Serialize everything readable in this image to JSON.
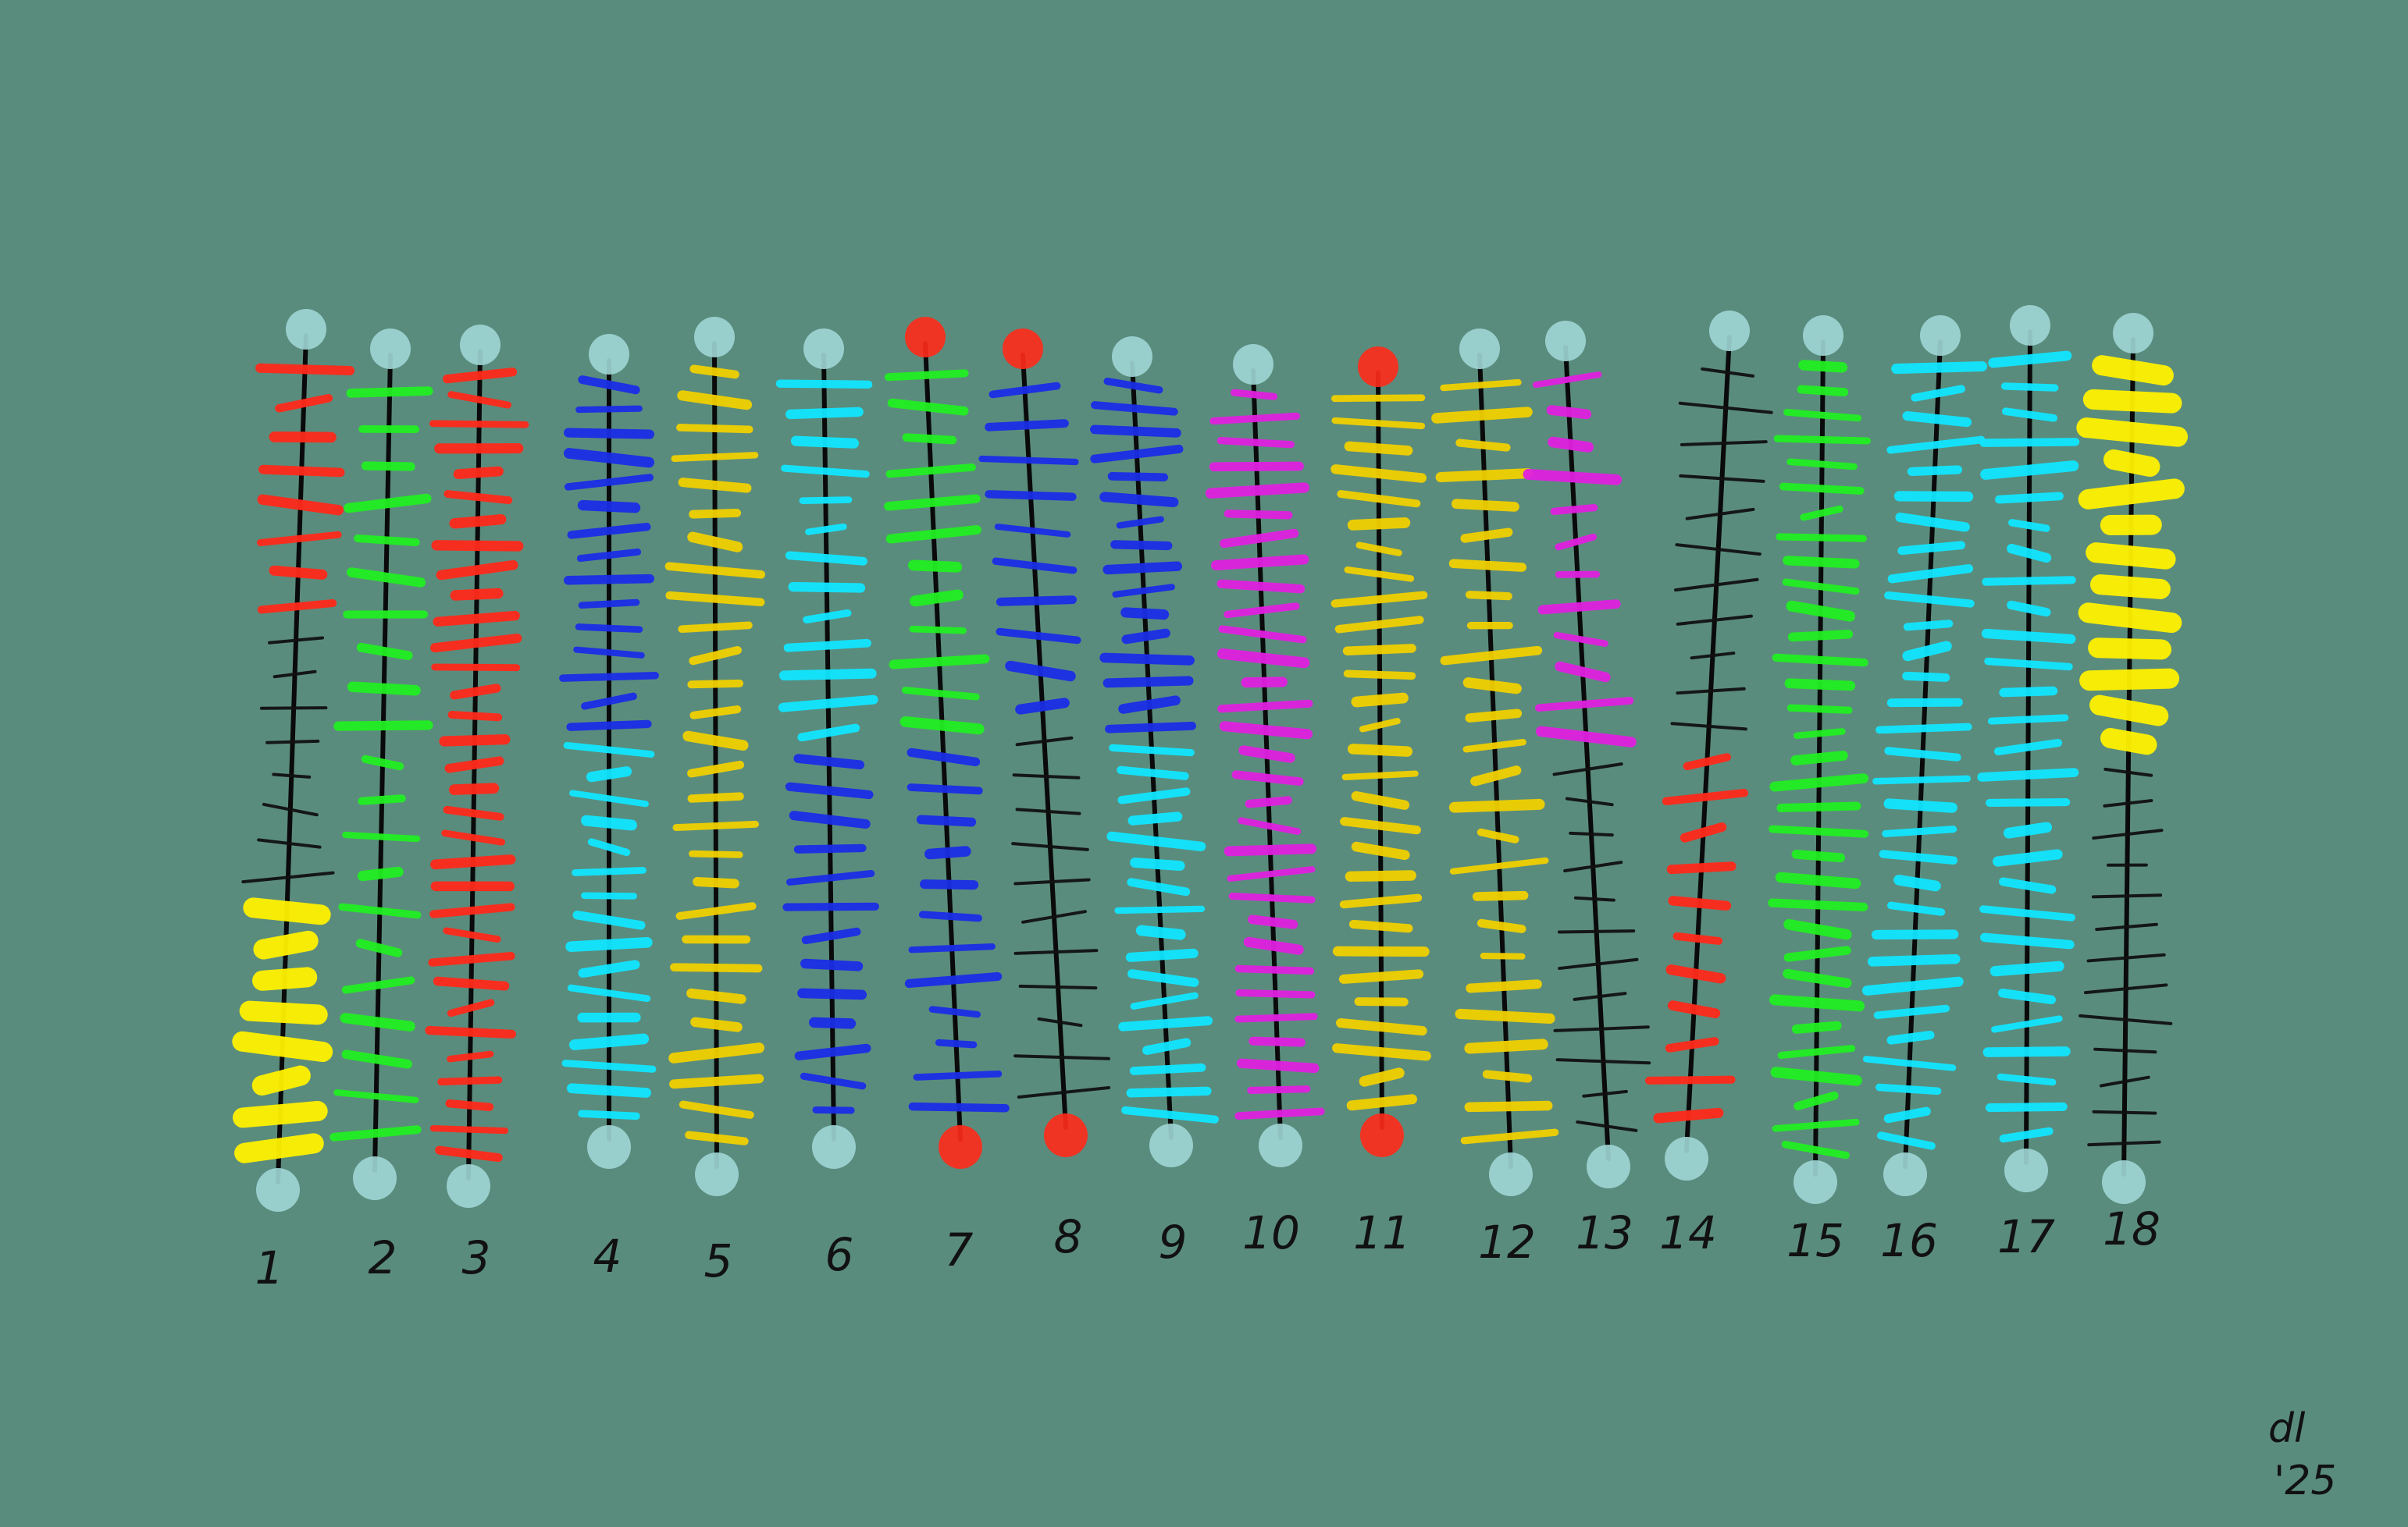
{
  "strands": [
    {
      "label": "1",
      "colors": [
        "#ff2a1a",
        "#111111",
        "#fff200"
      ],
      "end_color": "#9ed6d6"
    },
    {
      "label": "2",
      "colors": [
        "#22ee22"
      ],
      "end_color": "#9ed6d6"
    },
    {
      "label": "3",
      "colors": [
        "#ff2a1a"
      ],
      "end_color": "#9ed6d6"
    },
    {
      "label": "4",
      "colors": [
        "#1a2ee6",
        "#11e6ff"
      ],
      "end_color": "#9ed6d6"
    },
    {
      "label": "5",
      "colors": [
        "#f0d000"
      ],
      "end_color": "#9ed6d6"
    },
    {
      "label": "6",
      "colors": [
        "#11e6ff",
        "#1a2ee6"
      ],
      "end_color": "#9ed6d6"
    },
    {
      "label": "7",
      "colors": [
        "#22ee22",
        "#1a2ee6"
      ],
      "end_color": "#ff2a1a"
    },
    {
      "label": "8",
      "colors": [
        "#1a2ee6",
        "#111111"
      ],
      "end_color": "#ff2a1a"
    },
    {
      "label": "9",
      "colors": [
        "#1a2ee6",
        "#11e6ff"
      ],
      "end_color": "#9ed6d6"
    },
    {
      "label": "10",
      "colors": [
        "#e020e0"
      ],
      "end_color": "#9ed6d6"
    },
    {
      "label": "11",
      "colors": [
        "#f0d000"
      ],
      "end_color": "#ff2a1a"
    },
    {
      "label": "12",
      "colors": [
        "#f0d000"
      ],
      "end_color": "#9ed6d6"
    },
    {
      "label": "13",
      "colors": [
        "#e020e0",
        "#111111"
      ],
      "end_color": "#9ed6d6"
    },
    {
      "label": "14",
      "colors": [
        "#111111",
        "#ff2a1a"
      ],
      "end_color": "#9ed6d6"
    },
    {
      "label": "15",
      "colors": [
        "#22ee22"
      ],
      "end_color": "#9ed6d6"
    },
    {
      "label": "16",
      "colors": [
        "#11e6ff"
      ],
      "end_color": "#9ed6d6"
    },
    {
      "label": "17",
      "colors": [
        "#11e6ff"
      ],
      "end_color": "#9ed6d6"
    },
    {
      "label": "18",
      "colors": [
        "#fff200",
        "#111111"
      ],
      "end_color": "#9ed6d6"
    }
  ],
  "signature": {
    "line1": "dl",
    "line2": "'25"
  },
  "background": "#5a8c7d"
}
